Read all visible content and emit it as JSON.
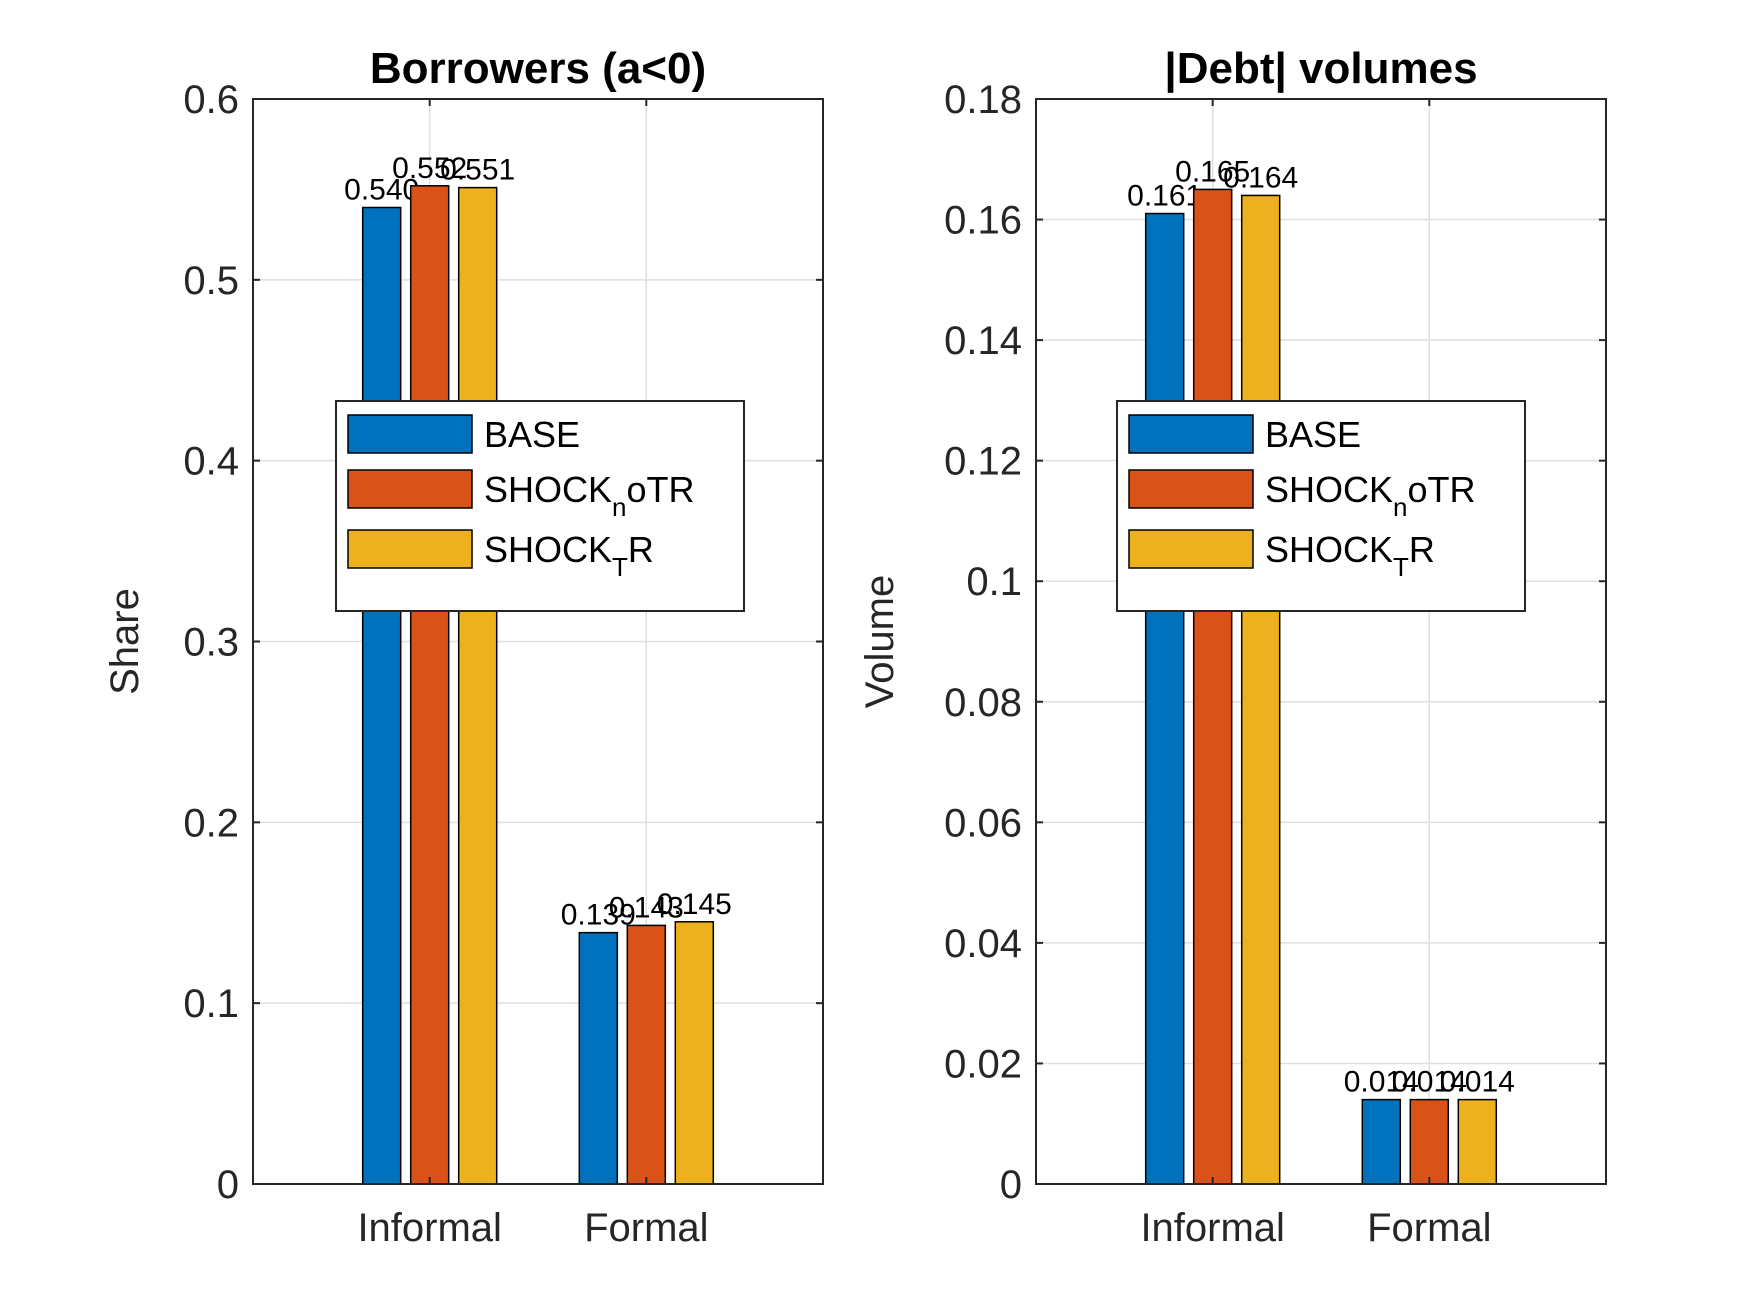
{
  "colors": {
    "series": [
      "#0072BD",
      "#D95319",
      "#EDB120"
    ],
    "axis": "#262626",
    "grid": "#dfdfdf"
  },
  "legend": [
    {
      "base": "BASE",
      "sub": "",
      "tail": ""
    },
    {
      "base": "SHOCK",
      "sub": "n",
      "tail": "oTR"
    },
    {
      "base": "SHOCK",
      "sub": "T",
      "tail": "R"
    }
  ],
  "chart_data": [
    {
      "type": "bar",
      "title": "Borrowers (a<0)",
      "ylabel": "Share",
      "categories": [
        "Informal",
        "Formal"
      ],
      "ylim": [
        0,
        0.6
      ],
      "yticks": [
        "0",
        "0.1",
        "0.2",
        "0.3",
        "0.4",
        "0.5",
        "0.6"
      ],
      "grid": true,
      "legend_position": "center",
      "series": [
        {
          "name": "BASE",
          "values": [
            0.54,
            0.139
          ],
          "labels": [
            "0.540",
            "0.139"
          ]
        },
        {
          "name": "SHOCK_noTR",
          "values": [
            0.552,
            0.143
          ],
          "labels": [
            "0.552",
            "0.143"
          ]
        },
        {
          "name": "SHOCK_TR",
          "values": [
            0.551,
            0.145
          ],
          "labels": [
            "0.551",
            "0.145"
          ]
        }
      ]
    },
    {
      "type": "bar",
      "title": "|Debt| volumes",
      "ylabel": "Volume",
      "categories": [
        "Informal",
        "Formal"
      ],
      "ylim": [
        0,
        0.18
      ],
      "yticks": [
        "0",
        "0.02",
        "0.04",
        "0.06",
        "0.08",
        "0.1",
        "0.12",
        "0.14",
        "0.16",
        "0.18"
      ],
      "grid": true,
      "legend_position": "center",
      "series": [
        {
          "name": "BASE",
          "values": [
            0.161,
            0.014
          ],
          "labels": [
            "0.161",
            "0.014"
          ]
        },
        {
          "name": "SHOCK_noTR",
          "values": [
            0.165,
            0.014
          ],
          "labels": [
            "0.165",
            "0.014"
          ]
        },
        {
          "name": "SHOCK_TR",
          "values": [
            0.164,
            0.014
          ],
          "labels": [
            "0.164",
            "0.014"
          ]
        }
      ]
    }
  ]
}
